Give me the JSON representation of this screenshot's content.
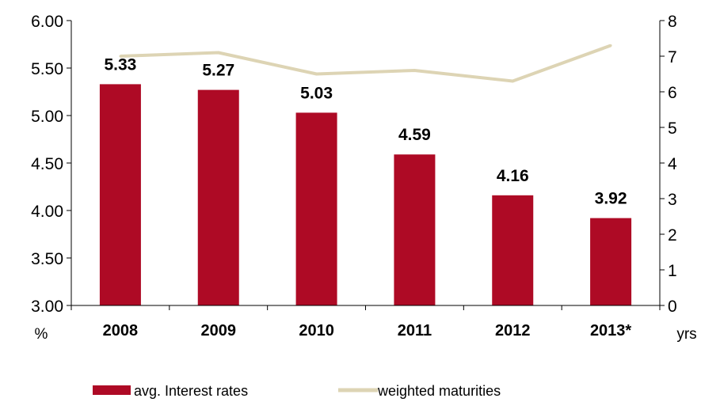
{
  "chart_data": {
    "type": "bar",
    "categories": [
      "2008",
      "2009",
      "2010",
      "2011",
      "2012",
      "2013*"
    ],
    "series": [
      {
        "name": "avg. Interest rates",
        "type": "bar",
        "axis": "left",
        "color": "#AE0A25",
        "values": [
          5.33,
          5.27,
          5.03,
          4.59,
          4.16,
          3.92
        ]
      },
      {
        "name": "weighted maturities",
        "type": "line",
        "axis": "right",
        "color": "#DDD4B4",
        "values": [
          7.0,
          7.1,
          6.5,
          6.6,
          6.3,
          7.3
        ]
      }
    ],
    "data_labels": [
      "5.33",
      "5.27",
      "5.03",
      "4.59",
      "4.16",
      "3.92"
    ],
    "y_left": {
      "unit": "%",
      "ylim": [
        3.0,
        6.0
      ],
      "ticks": [
        "3.00",
        "3.50",
        "4.00",
        "4.50",
        "5.00",
        "5.50",
        "6.00"
      ]
    },
    "y_right": {
      "unit": "yrs",
      "ylim": [
        0,
        8
      ],
      "ticks": [
        "0",
        "1",
        "2",
        "3",
        "4",
        "5",
        "6",
        "7",
        "8"
      ]
    },
    "legend_position": "bottom",
    "grid": false
  }
}
